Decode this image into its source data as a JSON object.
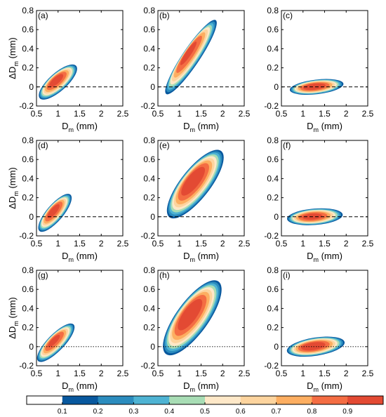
{
  "chart_data": [
    {
      "label": "(a)",
      "type": "contour",
      "dash": "dashed",
      "xlabel": "D_m (mm)",
      "ylabel": "ΔD_m (mm)",
      "xlim": [
        0.5,
        2.5
      ],
      "ylim": [
        -0.2,
        0.8
      ],
      "xticks": [
        "0.5",
        "1",
        "1.5",
        "2",
        "2.5"
      ],
      "yticks": [
        "-0.2",
        "0",
        "0.2",
        "0.4",
        "0.6",
        "0.8"
      ],
      "blob": {
        "cx": 1.0,
        "cy": 0.05,
        "length": 0.95,
        "width": 0.21,
        "angle": 22,
        "peak": 0.92
      }
    },
    {
      "label": "(b)",
      "type": "contour",
      "dash": "dashed",
      "xlabel": "D_m (mm)",
      "ylabel": "",
      "xlim": [
        0.5,
        2.5
      ],
      "ylim": [
        -0.2,
        0.8
      ],
      "xticks": [
        "0.5",
        "1",
        "1.5",
        "2",
        "2.5"
      ],
      "yticks": [
        "-0.2",
        "0",
        "0.2",
        "0.4",
        "0.6",
        "0.8"
      ],
      "blob": {
        "cx": 1.27,
        "cy": 0.31,
        "length": 1.45,
        "width": 0.22,
        "angle": 34,
        "peak": 0.9
      }
    },
    {
      "label": "(c)",
      "type": "contour",
      "dash": "dashed",
      "xlabel": "D_m (mm)",
      "ylabel": "",
      "xlim": [
        0.5,
        2.5
      ],
      "ylim": [
        -0.2,
        0.8
      ],
      "xticks": [
        "0.5",
        "1",
        "1.5",
        "2",
        "2.5"
      ],
      "yticks": [
        "-0.2",
        "0",
        "0.2",
        "0.4",
        "0.6",
        "0.8"
      ],
      "blob": {
        "cx": 1.32,
        "cy": 0.0,
        "length": 1.3,
        "width": 0.16,
        "angle": 3,
        "peak": 0.95
      }
    },
    {
      "label": "(d)",
      "type": "contour",
      "dash": "dashed",
      "xlabel": "D_m (mm)",
      "ylabel": "ΔD_m (mm)",
      "xlim": [
        0.5,
        2.5
      ],
      "ylim": [
        -0.2,
        0.8
      ],
      "xticks": [
        "0.5",
        "1",
        "1.5",
        "2",
        "2.5"
      ],
      "yticks": [
        "-0.2",
        "0",
        "0.2",
        "0.4",
        "0.6",
        "0.8"
      ],
      "blob": {
        "cx": 0.93,
        "cy": 0.04,
        "length": 0.85,
        "width": 0.2,
        "angle": 28,
        "peak": 0.92
      }
    },
    {
      "label": "(e)",
      "type": "contour",
      "dash": "dashed",
      "xlabel": "D_m (mm)",
      "ylabel": "",
      "xlim": [
        0.5,
        2.5
      ],
      "ylim": [
        -0.2,
        0.8
      ],
      "xticks": [
        "0.5",
        "1",
        "1.5",
        "2",
        "2.5"
      ],
      "yticks": [
        "-0.2",
        "0",
        "0.2",
        "0.4",
        "0.6",
        "0.8"
      ],
      "blob": {
        "cx": 1.37,
        "cy": 0.34,
        "length": 1.45,
        "width": 0.36,
        "angle": 30,
        "peak": 0.95
      }
    },
    {
      "label": "(f)",
      "type": "contour",
      "dash": "dashed",
      "xlabel": "D_m (mm)",
      "ylabel": "",
      "xlim": [
        0.5,
        2.5
      ],
      "ylim": [
        -0.2,
        0.8
      ],
      "xticks": [
        "0.5",
        "1",
        "1.5",
        "2",
        "2.5"
      ],
      "yticks": [
        "-0.2",
        "0",
        "0.2",
        "0.4",
        "0.6",
        "0.8"
      ],
      "blob": {
        "cx": 1.28,
        "cy": 0.0,
        "length": 1.35,
        "width": 0.18,
        "angle": 2,
        "peak": 0.92
      }
    },
    {
      "label": "(g)",
      "type": "contour",
      "dash": "dotted",
      "xlabel": "D_m (mm)",
      "ylabel": "ΔD_m (mm)",
      "xlim": [
        0.5,
        2.5
      ],
      "ylim": [
        -0.2,
        0.8
      ],
      "xticks": [
        "0.5",
        "1",
        "1.5",
        "2",
        "2.5"
      ],
      "yticks": [
        "-0.2",
        "0",
        "0.2",
        "0.4",
        "0.6",
        "0.8"
      ],
      "blob": {
        "cx": 0.95,
        "cy": 0.04,
        "length": 0.95,
        "width": 0.2,
        "angle": 25,
        "peak": 0.9
      }
    },
    {
      "label": "(h)",
      "type": "contour",
      "dash": "dotted",
      "xlabel": "D_m (mm)",
      "ylabel": "",
      "xlim": [
        0.5,
        2.5
      ],
      "ylim": [
        -0.2,
        0.8
      ],
      "xticks": [
        "0.5",
        "1",
        "1.5",
        "2",
        "2.5"
      ],
      "yticks": [
        "-0.2",
        "0",
        "0.2",
        "0.4",
        "0.6",
        "0.8"
      ],
      "blob": {
        "cx": 1.3,
        "cy": 0.3,
        "length": 1.5,
        "width": 0.4,
        "angle": 32,
        "peak": 0.95
      }
    },
    {
      "label": "(i)",
      "type": "contour",
      "dash": "dotted",
      "xlabel": "D_m (mm)",
      "ylabel": "",
      "xlim": [
        0.5,
        2.5
      ],
      "ylim": [
        -0.2,
        0.8
      ],
      "xticks": [
        "0.5",
        "1",
        "1.5",
        "2",
        "2.5"
      ],
      "yticks": [
        "-0.2",
        "0",
        "0.2",
        "0.4",
        "0.6",
        "0.8"
      ],
      "blob": {
        "cx": 1.3,
        "cy": 0.0,
        "length": 1.4,
        "width": 0.2,
        "angle": 4,
        "peak": 0.95
      }
    }
  ],
  "colorbar": {
    "ticks": [
      "0.1",
      "0.2",
      "0.3",
      "0.4",
      "0.5",
      "0.6",
      "0.7",
      "0.8",
      "0.9"
    ],
    "colors": [
      "#ffffff",
      "#08589e",
      "#2b8cbe",
      "#4eb3d3",
      "#a8ddb5",
      "#fee8c8",
      "#fdd49e",
      "#fdae61",
      "#f46d43",
      "#e34a33"
    ]
  }
}
